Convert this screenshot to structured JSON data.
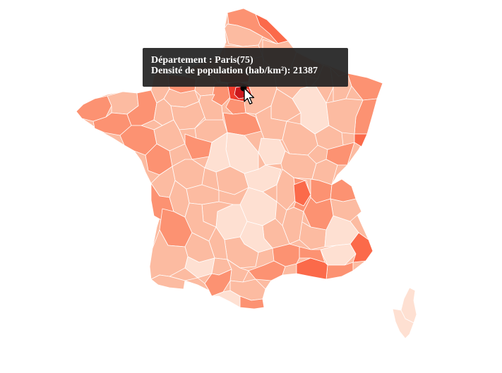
{
  "tooltip": {
    "line1": "Département : Paris(75)",
    "line2": "Densité de population (hab/km²): 21387"
  },
  "colors": {
    "palest": "#fee0d2",
    "light": "#fcbba1",
    "medium": "#fc9272",
    "strong": "#fb6a4a",
    "dark": "#ef3b2c",
    "darkest": "#cb181d",
    "marker": "#000000",
    "tooltip_bg": "#222222"
  },
  "icons": {
    "marker": "hover-marker-icon",
    "cursor": "mouse-pointer-icon"
  }
}
